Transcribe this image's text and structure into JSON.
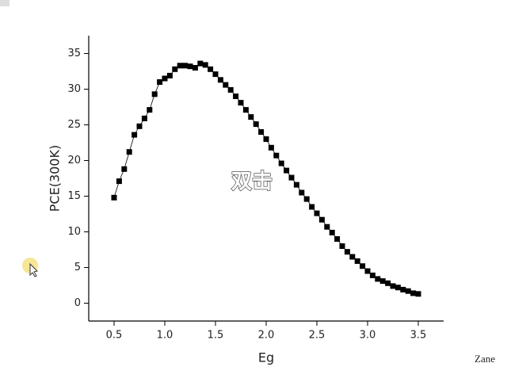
{
  "chart_data": {
    "type": "scatter-line",
    "x_label": "Eg",
    "y_label": "PCE(300K)",
    "x": [
      0.5,
      0.55,
      0.6,
      0.65,
      0.7,
      0.75,
      0.8,
      0.85,
      0.9,
      0.95,
      1.0,
      1.05,
      1.1,
      1.15,
      1.2,
      1.25,
      1.3,
      1.35,
      1.4,
      1.45,
      1.5,
      1.55,
      1.6,
      1.65,
      1.7,
      1.75,
      1.8,
      1.85,
      1.9,
      1.95,
      2.0,
      2.05,
      2.1,
      2.15,
      2.2,
      2.25,
      2.3,
      2.35,
      2.4,
      2.45,
      2.5,
      2.55,
      2.6,
      2.65,
      2.7,
      2.75,
      2.8,
      2.85,
      2.9,
      2.95,
      3.0,
      3.05,
      3.1,
      3.15,
      3.2,
      3.25,
      3.3,
      3.35,
      3.4,
      3.45,
      3.5
    ],
    "series": [
      {
        "color": "#000000",
        "values": [
          14.8,
          17.1,
          18.8,
          21.2,
          23.6,
          24.8,
          25.9,
          27.1,
          29.3,
          31.0,
          31.5,
          31.9,
          32.8,
          33.3,
          33.3,
          33.2,
          33.0,
          33.6,
          33.4,
          32.8,
          32.1,
          31.3,
          30.6,
          29.9,
          29.0,
          28.1,
          27.1,
          26.1,
          25.1,
          24.0,
          23.0,
          21.8,
          20.7,
          19.6,
          18.6,
          17.6,
          16.6,
          15.5,
          14.6,
          13.5,
          12.6,
          11.7,
          10.7,
          9.9,
          9.0,
          8.0,
          7.2,
          6.5,
          5.9,
          5.2,
          4.5,
          3.9,
          3.4,
          3.1,
          2.8,
          2.4,
          2.2,
          1.9,
          1.7,
          1.4,
          1.3
        ]
      }
    ],
    "xlim": [
      0.25,
      3.75
    ],
    "ylim": [
      -2.5,
      37.5
    ],
    "xticks": [
      0.5,
      {
        "value": 1,
        "label": "1.0"
      },
      1.5,
      {
        "value": 2,
        "label": "2.0"
      },
      2.5,
      {
        "value": 3,
        "label": "3.0"
      },
      3.5
    ],
    "yticks": [
      0,
      5,
      10,
      15,
      20,
      25,
      30,
      35
    ],
    "annotations": [
      "双击",
      "Zane"
    ]
  }
}
